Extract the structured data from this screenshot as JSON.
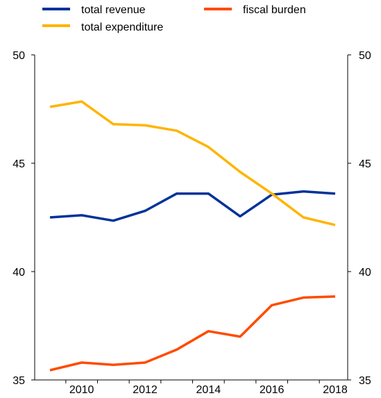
{
  "chart_data": {
    "type": "line",
    "x": [
      2009,
      2010,
      2011,
      2012,
      2013,
      2014,
      2015,
      2016,
      2017,
      2018
    ],
    "x_tick_labels": [
      "2010",
      "2012",
      "2014",
      "2016",
      "2018"
    ],
    "x_tick_values": [
      2010,
      2012,
      2014,
      2016,
      2018
    ],
    "ylim": [
      35,
      50
    ],
    "y_ticks": [
      50,
      45,
      40,
      35
    ],
    "y_tick_labels_left": [
      "50",
      "45",
      "40",
      "35"
    ],
    "y_tick_labels_right": [
      "50",
      "45",
      "40",
      "35"
    ],
    "grid": false,
    "legend_position": "top",
    "series": [
      {
        "name": "total revenue",
        "color": "#003299",
        "values": [
          42.5,
          42.6,
          42.35,
          42.8,
          43.6,
          43.6,
          42.55,
          43.55,
          43.7,
          43.6
        ]
      },
      {
        "name": "fiscal burden",
        "color": "#FF4B00",
        "values": [
          35.45,
          35.8,
          35.7,
          35.8,
          36.4,
          37.25,
          37.0,
          38.45,
          38.8,
          38.85
        ]
      },
      {
        "name": "total expenditure",
        "color": "#FFB400",
        "values": [
          47.6,
          47.85,
          46.8,
          46.75,
          46.5,
          45.75,
          44.6,
          43.6,
          42.5,
          42.15
        ]
      }
    ]
  }
}
